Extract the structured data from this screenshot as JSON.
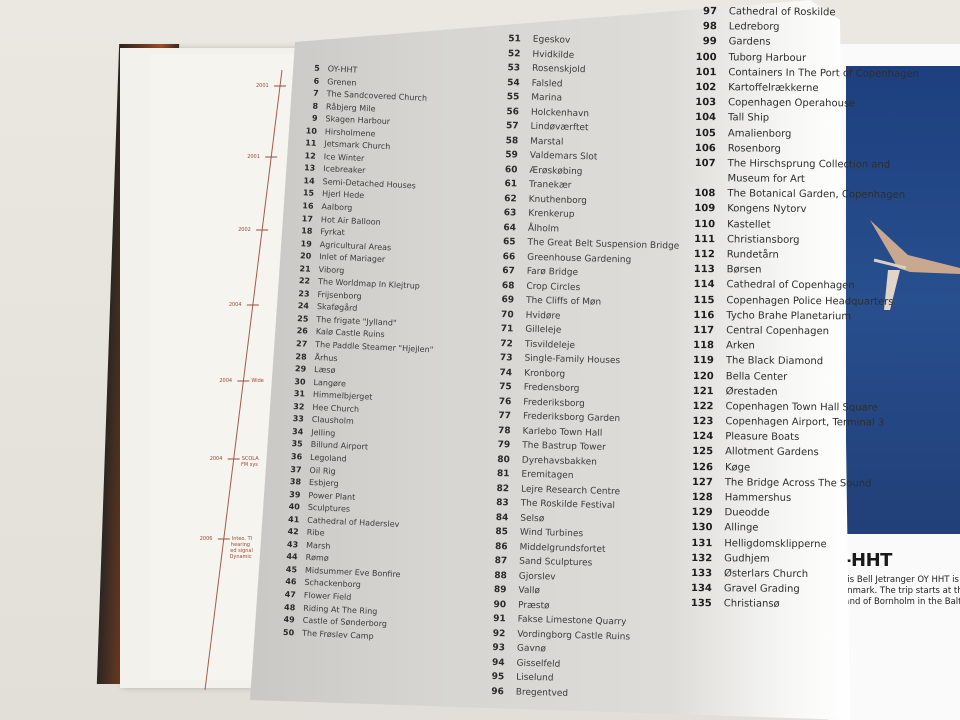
{
  "timeline": {
    "years": [
      "2001",
      "2001",
      "2002",
      "2004",
      "2004",
      "2004",
      "2006"
    ],
    "notes": [
      "Wide",
      "SCOLA",
      "FM sys",
      "Inteo. TI",
      "hearing",
      "ed signal",
      "Dynamic"
    ],
    "line_color": "#9a4a3a"
  },
  "index": {
    "columns": [
      [
        {
          "n": "5",
          "t": "OY-HHT"
        },
        {
          "n": "6",
          "t": "Grenen"
        },
        {
          "n": "7",
          "t": "The Sandcovered Church"
        },
        {
          "n": "8",
          "t": "Råbjerg Mile"
        },
        {
          "n": "9",
          "t": "Skagen Harbour"
        },
        {
          "n": "10",
          "t": "Hirsholmene"
        },
        {
          "n": "11",
          "t": "Jetsmark Church"
        },
        {
          "n": "12",
          "t": "Ice Winter"
        },
        {
          "n": "13",
          "t": "Icebreaker"
        },
        {
          "n": "14",
          "t": "Semi-Detached Houses"
        },
        {
          "n": "15",
          "t": "Hjerl Hede"
        },
        {
          "n": "16",
          "t": "Aalborg"
        },
        {
          "n": "17",
          "t": "Hot Air Balloon"
        },
        {
          "n": "18",
          "t": "Fyrkat"
        },
        {
          "n": "19",
          "t": "Agricultural Areas"
        },
        {
          "n": "20",
          "t": "Inlet of Mariager"
        },
        {
          "n": "21",
          "t": "Viborg"
        },
        {
          "n": "22",
          "t": "The Worldmap In Klejtrup"
        },
        {
          "n": "23",
          "t": "Frijsenborg"
        },
        {
          "n": "24",
          "t": "Skaføgård"
        },
        {
          "n": "25",
          "t": "The frigate \"Jylland\""
        },
        {
          "n": "26",
          "t": "Kalø Castle Ruins"
        },
        {
          "n": "27",
          "t": "The Paddle Steamer \"Hjejlen\""
        },
        {
          "n": "28",
          "t": "Århus"
        },
        {
          "n": "29",
          "t": "Læsø"
        },
        {
          "n": "30",
          "t": "Langøre"
        },
        {
          "n": "31",
          "t": "Himmelbjerget"
        },
        {
          "n": "32",
          "t": "Hee Church"
        },
        {
          "n": "33",
          "t": "Clausholm"
        },
        {
          "n": "34",
          "t": "Jelling"
        },
        {
          "n": "35",
          "t": "Billund Airport"
        },
        {
          "n": "36",
          "t": "Legoland"
        },
        {
          "n": "37",
          "t": "Oil Rig"
        },
        {
          "n": "38",
          "t": "Esbjerg"
        },
        {
          "n": "39",
          "t": "Power Plant"
        },
        {
          "n": "40",
          "t": "Sculptures"
        },
        {
          "n": "41",
          "t": "Cathedral of Haderslev"
        },
        {
          "n": "42",
          "t": "Ribe"
        },
        {
          "n": "43",
          "t": "Marsh"
        },
        {
          "n": "44",
          "t": "Rømø"
        },
        {
          "n": "45",
          "t": "Midsummer Eve Bonfire"
        },
        {
          "n": "46",
          "t": "Schackenborg"
        },
        {
          "n": "47",
          "t": "Flower Field"
        },
        {
          "n": "48",
          "t": "Riding At The Ring"
        },
        {
          "n": "49",
          "t": "Castle of Sønderborg"
        },
        {
          "n": "50",
          "t": "The Frøslev Camp"
        }
      ],
      [
        {
          "n": "51",
          "t": "Egeskov"
        },
        {
          "n": "52",
          "t": "Hvidkilde"
        },
        {
          "n": "53",
          "t": "Rosenskjold"
        },
        {
          "n": "54",
          "t": "Falsled"
        },
        {
          "n": "55",
          "t": "Marina"
        },
        {
          "n": "56",
          "t": "Holckenhavn"
        },
        {
          "n": "57",
          "t": "Lindøværftet"
        },
        {
          "n": "58",
          "t": "Marstal"
        },
        {
          "n": "59",
          "t": "Valdemars Slot"
        },
        {
          "n": "60",
          "t": "Ærøskøbing"
        },
        {
          "n": "61",
          "t": "Tranekær"
        },
        {
          "n": "62",
          "t": "Knuthenborg"
        },
        {
          "n": "63",
          "t": "Krenkerup"
        },
        {
          "n": "64",
          "t": "Ålholm"
        },
        {
          "n": "65",
          "t": "The Great Belt Suspension Bridge"
        },
        {
          "n": "66",
          "t": "Greenhouse Gardening"
        },
        {
          "n": "67",
          "t": "Farø Bridge"
        },
        {
          "n": "68",
          "t": "Crop Circles"
        },
        {
          "n": "69",
          "t": "The Cliffs of Møn"
        },
        {
          "n": "70",
          "t": "Hvidøre"
        },
        {
          "n": "71",
          "t": "Gilleleje"
        },
        {
          "n": "72",
          "t": "Tisvildeleje"
        },
        {
          "n": "73",
          "t": "Single-Family Houses"
        },
        {
          "n": "74",
          "t": "Kronborg"
        },
        {
          "n": "75",
          "t": "Fredensborg"
        },
        {
          "n": "76",
          "t": "Frederiksborg"
        },
        {
          "n": "77",
          "t": "Frederiksborg Garden"
        },
        {
          "n": "78",
          "t": "Karlebo Town Hall"
        },
        {
          "n": "79",
          "t": "The Bastrup Tower"
        },
        {
          "n": "80",
          "t": "Dyrehavsbakken"
        },
        {
          "n": "81",
          "t": "Eremitagen"
        },
        {
          "n": "82",
          "t": "Lejre Research Centre"
        },
        {
          "n": "83",
          "t": "The Roskilde Festival"
        },
        {
          "n": "84",
          "t": "Selsø"
        },
        {
          "n": "85",
          "t": "Wind Turbines"
        },
        {
          "n": "86",
          "t": "Middelgrundsfortet"
        },
        {
          "n": "87",
          "t": "Sand Sculptures"
        },
        {
          "n": "88",
          "t": "Gjorslev"
        },
        {
          "n": "89",
          "t": "Vallø"
        },
        {
          "n": "90",
          "t": "Præstø"
        },
        {
          "n": "91",
          "t": "Fakse Limestone Quarry"
        },
        {
          "n": "92",
          "t": "Vordingborg Castle Ruins"
        },
        {
          "n": "93",
          "t": "Gavnø"
        },
        {
          "n": "94",
          "t": "Gisselfeld"
        },
        {
          "n": "95",
          "t": "Liselund"
        },
        {
          "n": "96",
          "t": "Bregentved"
        }
      ],
      [
        {
          "n": "97",
          "t": "Cathedral of Roskilde"
        },
        {
          "n": "98",
          "t": "Ledreborg"
        },
        {
          "n": "99",
          "t": "Gardens"
        },
        {
          "n": "100",
          "t": "Tuborg Harbour"
        },
        {
          "n": "101",
          "t": "Containers In The Port of Copenhagen"
        },
        {
          "n": "102",
          "t": "Kartoffelrækkerne"
        },
        {
          "n": "103",
          "t": "Copenhagen Operahouse"
        },
        {
          "n": "104",
          "t": "Tall Ship"
        },
        {
          "n": "105",
          "t": "Amalienborg"
        },
        {
          "n": "106",
          "t": "Rosenborg"
        },
        {
          "n": "107",
          "t": "The Hirschsprung Collection and"
        },
        {
          "n": "",
          "t": "Museum for Art"
        },
        {
          "n": "108",
          "t": "The Botanical Garden, Copenhagen"
        },
        {
          "n": "109",
          "t": "Kongens Nytorv"
        },
        {
          "n": "110",
          "t": "Kastellet"
        },
        {
          "n": "111",
          "t": "Christiansborg"
        },
        {
          "n": "112",
          "t": "Rundetårn"
        },
        {
          "n": "113",
          "t": "Børsen"
        },
        {
          "n": "114",
          "t": "Cathedral of Copenhagen"
        },
        {
          "n": "115",
          "t": "Copenhagen Police Headquarters"
        },
        {
          "n": "116",
          "t": "Tycho Brahe Planetarium"
        },
        {
          "n": "117",
          "t": "Central Copenhagen"
        },
        {
          "n": "118",
          "t": "Arken"
        },
        {
          "n": "119",
          "t": "The Black Diamond"
        },
        {
          "n": "120",
          "t": "Bella Center"
        },
        {
          "n": "121",
          "t": "Ørestaden"
        },
        {
          "n": "122",
          "t": "Copenhagen Town Hall Square"
        },
        {
          "n": "123",
          "t": "Copenhagen Airport, Terminal 3"
        },
        {
          "n": "124",
          "t": "Pleasure Boats"
        },
        {
          "n": "125",
          "t": "Allotment Gardens"
        },
        {
          "n": "126",
          "t": "Køge"
        },
        {
          "n": "127",
          "t": "The Bridge Across The Sound"
        },
        {
          "n": "128",
          "t": "Hammershus"
        },
        {
          "n": "129",
          "t": "Dueodde"
        },
        {
          "n": "130",
          "t": "Allinge"
        },
        {
          "n": "131",
          "t": "Helligdomsklipperne"
        },
        {
          "n": "132",
          "t": "Gudhjem"
        },
        {
          "n": "133",
          "t": "Østerlars Church"
        },
        {
          "n": "134",
          "t": "Gravel Grading"
        },
        {
          "n": "135",
          "t": "Christiansø"
        }
      ]
    ]
  },
  "right_page": {
    "caption_title": "OY-HHT",
    "caption_lines": [
      "his Bell Jetranger OY HHT is t",
      "enmark. The trip starts at the",
      "land of Bornholm in the Balt"
    ],
    "photo_color": "#234685"
  }
}
